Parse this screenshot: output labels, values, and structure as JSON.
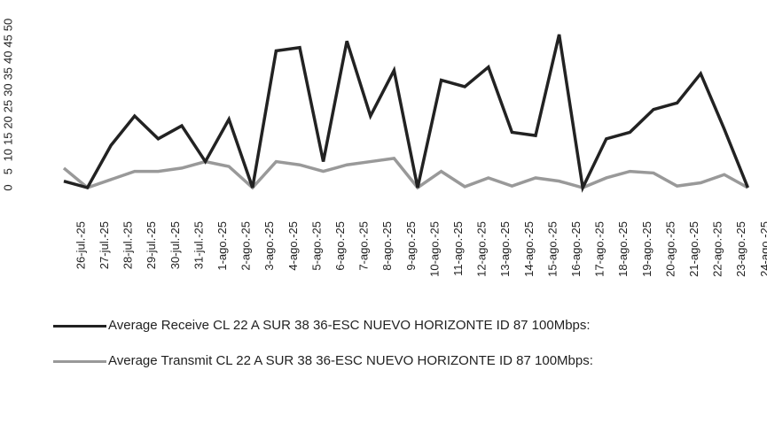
{
  "chart_data": {
    "type": "line",
    "categories": [
      "26-jul.-25",
      "27-jul.-25",
      "28-jul.-25",
      "29-jul.-25",
      "30-jul.-25",
      "31-jul.-25",
      "1-ago.-25",
      "2-ago.-25",
      "3-ago.-25",
      "4-ago.-25",
      "5-ago.-25",
      "6-ago.-25",
      "7-ago.-25",
      "8-ago.-25",
      "9-ago.-25",
      "10-ago.-25",
      "11-ago.-25",
      "12-ago.-25",
      "13-ago.-25",
      "14-ago.-25",
      "15-ago.-25",
      "16-ago.-25",
      "17-ago.-25",
      "18-ago.-25",
      "19-ago.-25",
      "20-ago.-25",
      "21-ago.-25",
      "22-ago.-25",
      "23-ago.-25",
      "24-ago.-25"
    ],
    "series": [
      {
        "name": "Average Receive CL 22 A SUR 38 36-ESC NUEVO HORIZONTE ID 87 100Mbps:",
        "color": "#222222",
        "values": [
          2,
          0,
          13,
          22,
          15,
          19,
          8,
          21,
          0,
          42,
          43,
          8,
          45,
          22,
          36,
          0,
          33,
          31,
          37,
          17,
          16,
          47,
          0,
          15,
          17,
          24,
          26,
          35,
          18,
          0
        ]
      },
      {
        "name": "Average Transmit CL 22 A SUR 38 36-ESC NUEVO HORIZONTE ID 87 100Mbps:",
        "color": "#999999",
        "values": [
          6,
          0,
          2.5,
          5,
          5,
          6,
          8,
          6.5,
          0,
          8,
          7,
          5,
          7,
          8,
          9,
          0,
          5,
          0.3,
          3,
          0.5,
          3,
          2,
          0,
          3,
          5,
          4.5,
          0.5,
          1.5,
          4,
          0
        ]
      }
    ],
    "ylim": [
      0,
      50
    ],
    "yticks": [
      0,
      5,
      10,
      15,
      20,
      25,
      30,
      35,
      40,
      45,
      50
    ]
  }
}
